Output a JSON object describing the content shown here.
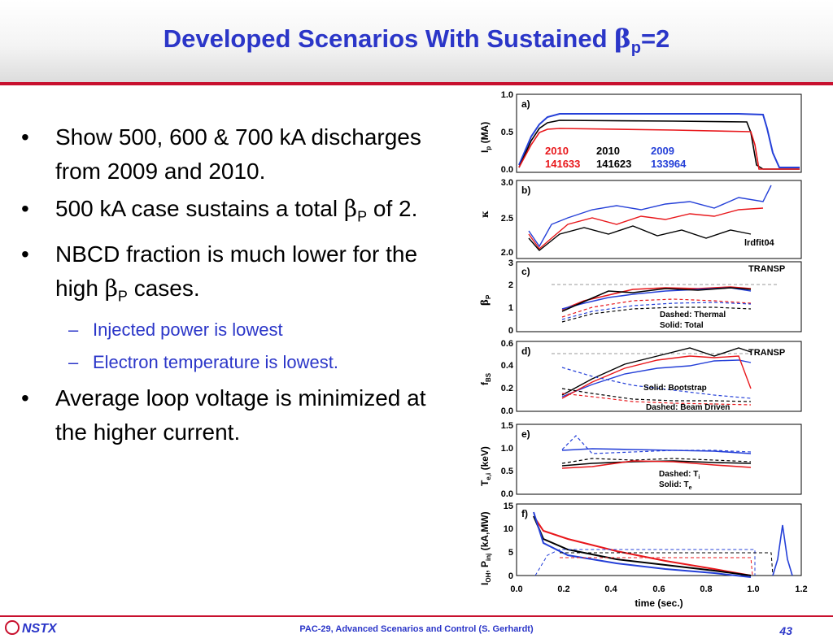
{
  "slide": {
    "title": "Developed Scenarios With Sustained ",
    "title_symbol": "β",
    "title_sub": "p",
    "title_tail": "=2"
  },
  "bullets": [
    {
      "text": "Show 500, 600 & 700 kA discharges from 2009 and 2010."
    },
    {
      "text_a": "500 kA case sustains a total ",
      "symbol": "β",
      "sub": "P",
      "text_b": " of 2."
    },
    {
      "text_a": "NBCD fraction is much lower for the high ",
      "symbol": "β",
      "sub": "P",
      "text_b": " cases."
    },
    {
      "text": "Average loop voltage is minimized at the higher current."
    }
  ],
  "sub_bullets": [
    "Injected power is lowest",
    "Electron temperature is lowest."
  ],
  "figure": {
    "legend": {
      "years": [
        "2010",
        "2010",
        "2009"
      ],
      "shots": [
        "141633",
        "141623",
        "133964"
      ],
      "colors": [
        "#e8171b",
        "#000000",
        "#2540d8"
      ]
    },
    "panels": [
      {
        "tag": "a)",
        "ylabel": "I",
        "ylabel_sub": "p",
        "ylabel_unit": " (MA)",
        "ticks": [
          "1.0",
          "0.5",
          "0.0"
        ]
      },
      {
        "tag": "b)",
        "ylabel": "κ",
        "ticks": [
          "3.0",
          "2.5",
          "2.0"
        ],
        "note": "lrdfit04"
      },
      {
        "tag": "c)",
        "ylabel": "β",
        "ylabel_sub": "P",
        "ticks": [
          "3",
          "2",
          "1",
          "0"
        ],
        "note": "TRANSP",
        "legend_lines": [
          "Dashed: Thermal",
          "Solid: Total"
        ]
      },
      {
        "tag": "d)",
        "ylabel": "f",
        "ylabel_sub": "BS",
        "ticks": [
          "0.6",
          "0.4",
          "0.2",
          "0.0"
        ],
        "note": "TRANSP",
        "legend_lines": [
          "Solid: Bootstrap",
          "Dashed: Beam Driven"
        ]
      },
      {
        "tag": "e)",
        "ylabel": "T",
        "ylabel_sub": "e,i",
        "ylabel_unit": " (keV)",
        "ticks": [
          "1.5",
          "1.0",
          "0.5",
          "0.0"
        ],
        "legend_lines": [
          "Dashed: T",
          "Solid: T"
        ],
        "legend_subs": [
          "i",
          "e"
        ]
      },
      {
        "tag": "f)",
        "ylabel": "I",
        "ylabel_sub": "OH",
        "ylabel_mid": ", P",
        "ylabel_sub2": "inj",
        "ylabel_unit": " (kA,MW)",
        "ticks": [
          "15",
          "10",
          "5",
          "0"
        ]
      }
    ],
    "xticks": [
      "0.0",
      "0.2",
      "0.4",
      "0.6",
      "0.8",
      "1.0",
      "1.2"
    ],
    "xlabel": "time (sec.)"
  },
  "footer": {
    "logo": "NSTX",
    "center": "PAC-29, Advanced Scenarios and Control (S. Gerhardt)",
    "page": "43"
  }
}
